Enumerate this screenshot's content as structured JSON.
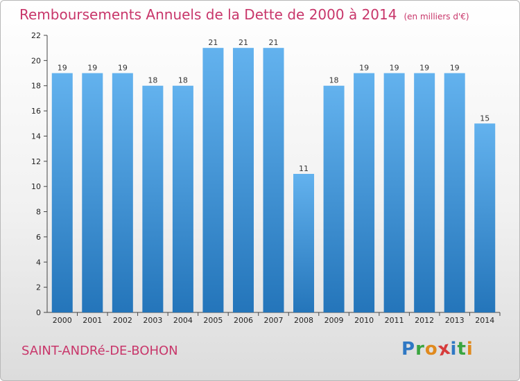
{
  "chart_data": {
    "type": "bar",
    "title": "Remboursements Annuels de la Dette de 2000 à 2014",
    "subtitle": "(en milliers d'€)",
    "categories": [
      "2000",
      "2001",
      "2002",
      "2003",
      "2004",
      "2005",
      "2006",
      "2007",
      "2008",
      "2009",
      "2010",
      "2011",
      "2012",
      "2013",
      "2014"
    ],
    "values": [
      19,
      19,
      19,
      18,
      18,
      21,
      21,
      21,
      11,
      18,
      19,
      19,
      19,
      19,
      15
    ],
    "ylim": [
      0,
      22
    ],
    "yticks": [
      0,
      2,
      4,
      6,
      8,
      10,
      12,
      14,
      16,
      18,
      20,
      22
    ],
    "xlabel": "",
    "ylabel": "",
    "grid": false,
    "legend": "none"
  },
  "footer": {
    "place": "SAINT-ANDRé-DE-BOHON",
    "logo": [
      "P",
      "r",
      "o",
      "x",
      "i",
      "t",
      "i"
    ],
    "logo_text": "Proxiti"
  },
  "colors": {
    "title": "#c8366a",
    "bar_top": "#63b2ee",
    "bar_bottom": "#2475ba",
    "logo": [
      "#2f78c4",
      "#3aa540",
      "#e08a1e",
      "#d63b3b",
      "#2f78c4",
      "#3aa540",
      "#e08a1e"
    ]
  }
}
